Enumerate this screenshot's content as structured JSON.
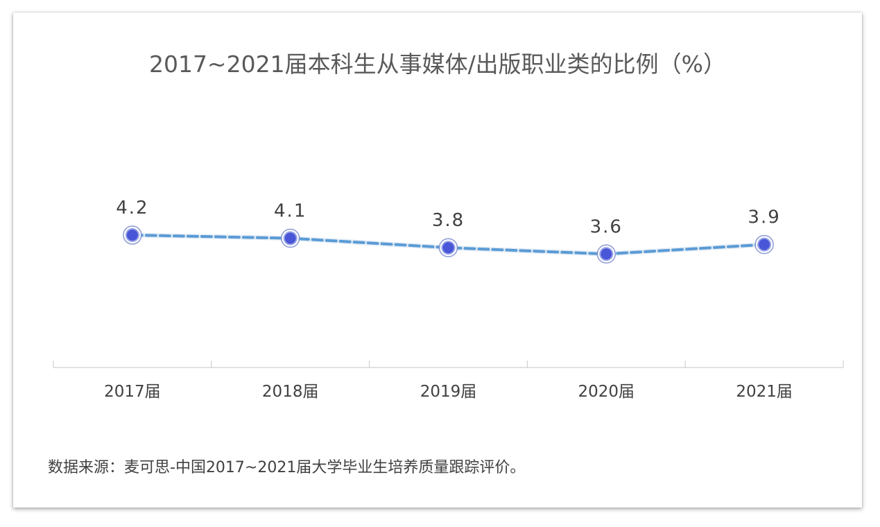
{
  "chart_data": {
    "type": "line",
    "title": "2017~2021届本科生从事媒体/出版职业类的比例（%）",
    "categories": [
      "2017届",
      "2018届",
      "2019届",
      "2020届",
      "2021届"
    ],
    "series": [
      {
        "values": [
          4.2,
          4.1,
          3.8,
          3.6,
          3.9
        ]
      }
    ],
    "data_labels": [
      "4.2",
      "4.1",
      "3.8",
      "3.6",
      "3.9"
    ],
    "xlabel": "",
    "ylabel": "",
    "ylim": [
      0,
      9.5
    ],
    "grid": false,
    "legend": "none",
    "colors": {
      "line": "#5b9bd5",
      "marker_fill": "#4a56d8",
      "marker_ring": "#7f8ecf",
      "axis": "#d0d0d0",
      "title_text": "#595959",
      "label_text": "#404040"
    }
  },
  "source_note": "数据来源：麦可思-中国2017~2021届大学毕业生培养质量跟踪评价。"
}
